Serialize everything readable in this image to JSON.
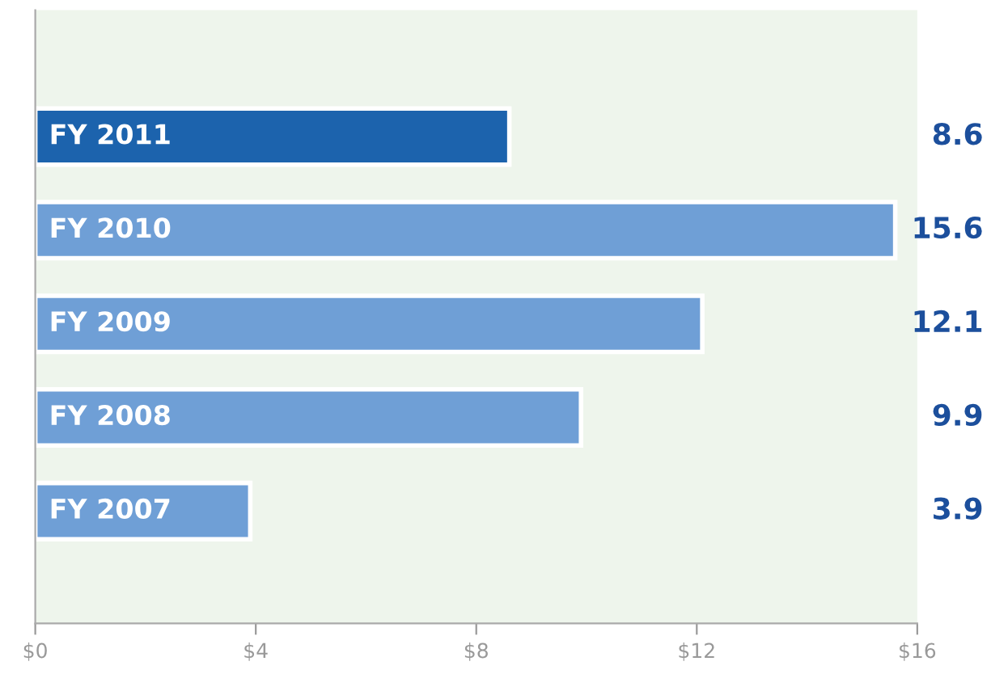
{
  "chart_data": {
    "type": "bar",
    "orientation": "horizontal",
    "categories": [
      "FY 2011",
      "FY 2010",
      "FY 2009",
      "FY 2008",
      "FY 2007"
    ],
    "values": [
      8.6,
      15.6,
      12.1,
      9.9,
      3.9
    ],
    "colors": [
      "#1c63ad",
      "#6f9fd6",
      "#6f9fd6",
      "#6f9fd6",
      "#6f9fd6"
    ],
    "data_labels": true,
    "xlim": [
      0,
      16
    ],
    "xticks": [
      {
        "value": 0,
        "label": "$0"
      },
      {
        "value": 4,
        "label": "$4"
      },
      {
        "value": 8,
        "label": "$8"
      },
      {
        "value": 12,
        "label": "$12"
      },
      {
        "value": 16,
        "label": "$16"
      }
    ],
    "grid": false,
    "legend": false
  }
}
